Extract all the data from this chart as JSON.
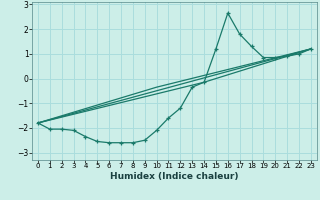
{
  "title": "",
  "xlabel": "Humidex (Indice chaleur)",
  "ylabel": "",
  "bg_color": "#cceee8",
  "grid_color": "#aadddd",
  "line_color": "#1a7a6a",
  "xlim": [
    -0.5,
    23.5
  ],
  "ylim": [
    -3.3,
    3.1
  ],
  "xticks": [
    0,
    1,
    2,
    3,
    4,
    5,
    6,
    7,
    8,
    9,
    10,
    11,
    12,
    13,
    14,
    15,
    16,
    17,
    18,
    19,
    20,
    21,
    22,
    23
  ],
  "yticks": [
    -3,
    -2,
    -1,
    0,
    1,
    2,
    3
  ],
  "series": [
    [
      0,
      -1.8
    ],
    [
      1,
      -2.05
    ],
    [
      2,
      -2.05
    ],
    [
      3,
      -2.1
    ],
    [
      4,
      -2.35
    ],
    [
      5,
      -2.55
    ],
    [
      6,
      -2.6
    ],
    [
      7,
      -2.6
    ],
    [
      8,
      -2.6
    ],
    [
      9,
      -2.5
    ],
    [
      10,
      -2.1
    ],
    [
      11,
      -1.6
    ],
    [
      12,
      -1.2
    ],
    [
      13,
      -0.35
    ],
    [
      14,
      -0.15
    ],
    [
      15,
      1.2
    ],
    [
      16,
      2.65
    ],
    [
      17,
      1.8
    ],
    [
      18,
      1.3
    ],
    [
      19,
      0.85
    ],
    [
      20,
      0.85
    ],
    [
      21,
      0.9
    ],
    [
      22,
      1.0
    ],
    [
      23,
      1.2
    ]
  ],
  "line2": [
    [
      0,
      -1.8
    ],
    [
      23,
      1.2
    ]
  ],
  "line3": [
    [
      0,
      -1.8
    ],
    [
      10,
      -0.35
    ],
    [
      23,
      1.2
    ]
  ],
  "line4": [
    [
      0,
      -1.8
    ],
    [
      14,
      -0.15
    ],
    [
      23,
      1.2
    ]
  ]
}
